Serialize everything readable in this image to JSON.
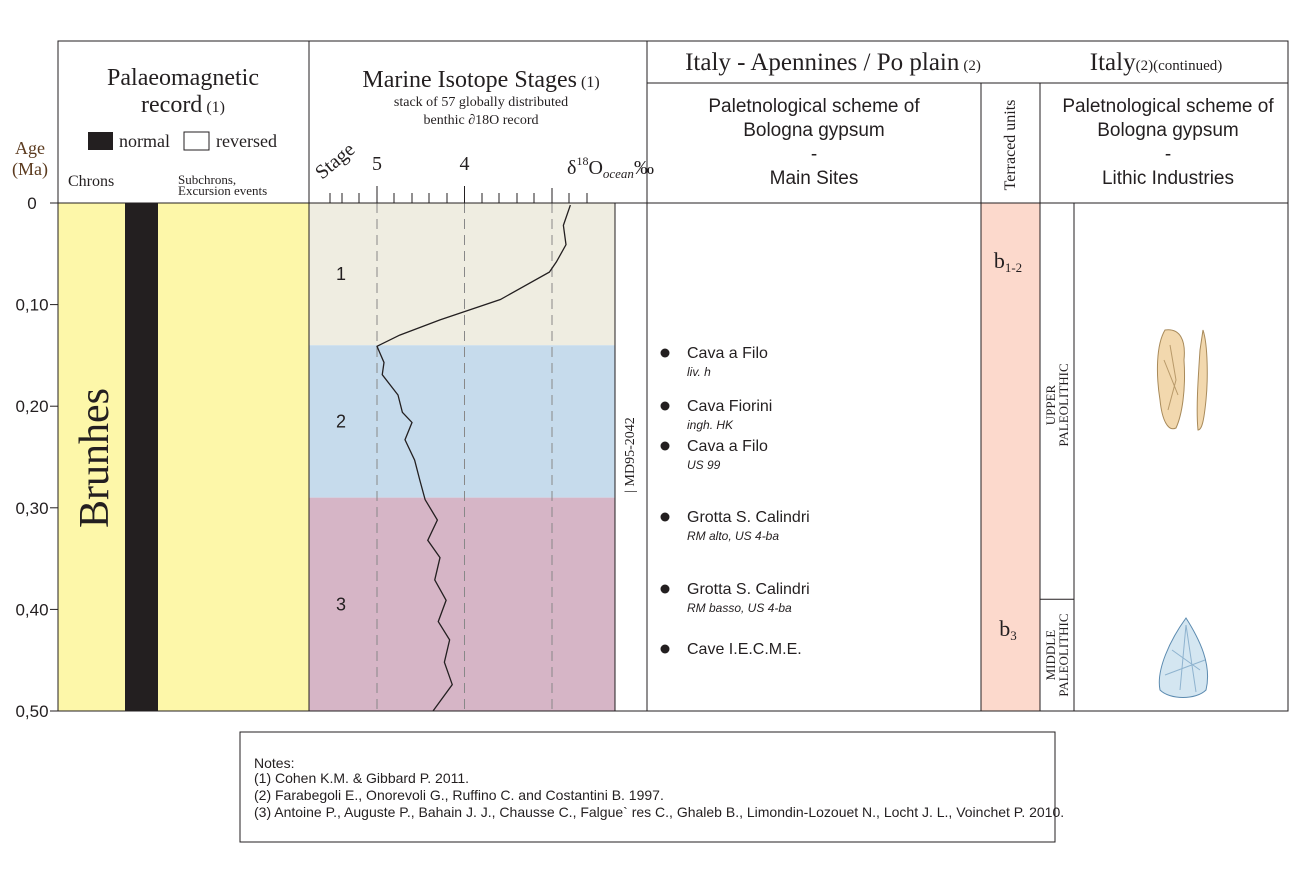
{
  "age_axis": {
    "title": "Age",
    "unit": "(Ma)",
    "ticks": [
      {
        "value": 0,
        "label": "0"
      },
      {
        "value": 0.1,
        "label": "0,10"
      },
      {
        "value": 0.2,
        "label": "0,20"
      },
      {
        "value": 0.3,
        "label": "0,30"
      },
      {
        "value": 0.4,
        "label": "0,40"
      },
      {
        "value": 0.5,
        "label": "0,50"
      }
    ],
    "range": [
      0,
      0.5
    ]
  },
  "palaeomagnetic": {
    "title_line1": "Palaeomagnetic",
    "title_line2": "record",
    "ref": "(1)",
    "legend_normal": "normal",
    "legend_reversed": "reversed",
    "chrons_label": "Chrons",
    "subchrons_line1": "Subchrons,",
    "subchrons_line2": "Excursion events",
    "chron": "Brunhes"
  },
  "marine_isotope": {
    "title": "Marine Isotope Stages",
    "ref": "(1)",
    "subtitle_line1": "stack of 57 globally distributed",
    "subtitle_line2": "benthic ∂18O record",
    "stage_label": "Stage",
    "axis_delta": "δ",
    "axis_sup": "18",
    "axis_o": "O",
    "axis_sub": "ocean",
    "axis_unit": "‰",
    "ticks": [
      5,
      4
    ],
    "stages": [
      {
        "label": "1",
        "top": 0,
        "bottom": 0.14,
        "color": "#efede1"
      },
      {
        "label": "2",
        "top": 0.14,
        "bottom": 0.29,
        "color": "#c6dbec"
      },
      {
        "label": "3",
        "top": 0.29,
        "bottom": 0.5,
        "color": "#d6b5c6"
      }
    ],
    "curve": [
      [
        0.002,
        2.79
      ],
      [
        0.022,
        2.87
      ],
      [
        0.041,
        2.84
      ],
      [
        0.058,
        2.95
      ],
      [
        0.068,
        3.03
      ],
      [
        0.095,
        3.59
      ],
      [
        0.115,
        4.28
      ],
      [
        0.13,
        4.74
      ],
      [
        0.141,
        5.0
      ],
      [
        0.157,
        4.92
      ],
      [
        0.169,
        4.94
      ],
      [
        0.189,
        4.76
      ],
      [
        0.206,
        4.71
      ],
      [
        0.216,
        4.6
      ],
      [
        0.233,
        4.68
      ],
      [
        0.253,
        4.57
      ],
      [
        0.273,
        4.51
      ],
      [
        0.292,
        4.45
      ],
      [
        0.312,
        4.31
      ],
      [
        0.332,
        4.42
      ],
      [
        0.349,
        4.28
      ],
      [
        0.371,
        4.34
      ],
      [
        0.391,
        4.21
      ],
      [
        0.412,
        4.3
      ],
      [
        0.43,
        4.17
      ],
      [
        0.452,
        4.23
      ],
      [
        0.474,
        4.14
      ],
      [
        0.5,
        4.36
      ]
    ],
    "core": "| MD95-2042"
  },
  "italy": {
    "title": "Italy - Apennines / Po plain",
    "ref": "(2)",
    "sites_header": [
      "Paletnological scheme of",
      "Bologna gypsum",
      "-",
      "Main Sites"
    ],
    "terraced_header": "Terraced units",
    "sites": [
      {
        "name": "Cava a Filo",
        "detail": "liv. h"
      },
      {
        "name": "Cava Fiorini",
        "detail": "ingh. HK"
      },
      {
        "name": "Cava a Filo",
        "detail": "US 99"
      },
      {
        "name": "Grotta S. Calindri",
        "detail": "RM alto, US 4-ba"
      },
      {
        "name": "Grotta S. Calindri",
        "detail": "RM basso, US 4-ba"
      },
      {
        "name": "Cave I.E.C.M.E."
      }
    ],
    "units": [
      {
        "label": "b",
        "sub": "1-2"
      },
      {
        "label": "b",
        "sub": "3"
      }
    ]
  },
  "italy_continued": {
    "title": "Italy",
    "ref": "(2)(continued)",
    "header": [
      "Paletnological scheme of",
      "Bologna gypsum",
      "-",
      "Lithic Industries"
    ],
    "periods": [
      {
        "line1": "UPPER",
        "line2": "PALEOLITHIC",
        "top": 0,
        "bottom": 0.39
      },
      {
        "line1": "MIDDLE",
        "line2": "PALEOLITHIC",
        "top": 0.39,
        "bottom": 0.5
      }
    ]
  },
  "notes": {
    "title": "Notes:",
    "items": [
      "(1) Cohen K.M. & Gibbard P. 2011.",
      "(2) Farabegoli E., Onorevoli G., Ruffino C. and Costantini B. 1997.",
      "(3) Antoine P., Auguste P., Bahain J. J., Chausse C., Falgue` res C., Ghaleb B., Limondin-Lozouet N., Locht J. L., Voinchet P. 2010."
    ]
  }
}
